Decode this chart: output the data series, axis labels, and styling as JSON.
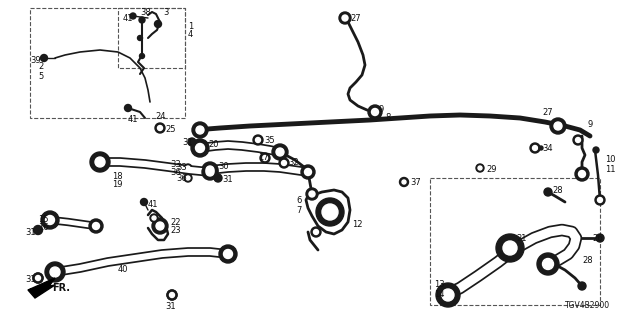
{
  "bg_color": "#ffffff",
  "line_color": "#1a1a1a",
  "diagram_id": "TGV4B2900",
  "fig_w": 6.4,
  "fig_h": 3.2,
  "dpi": 100
}
